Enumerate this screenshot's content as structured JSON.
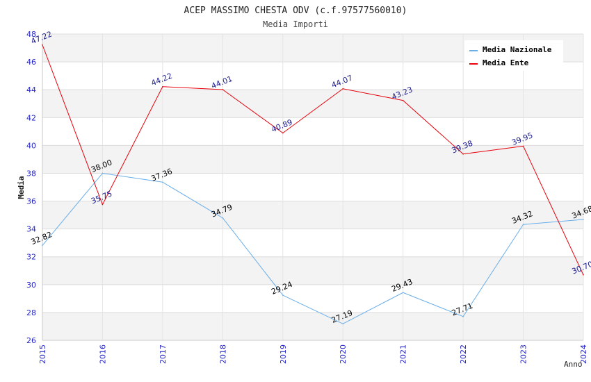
{
  "chart_data": {
    "type": "line",
    "title": "ACEP MASSIMO CHESTA ODV (c.f.97577560010)",
    "subtitle": "Media Importi",
    "xlabel": "Anno",
    "ylabel": "Media",
    "x": [
      "2015",
      "2016",
      "2017",
      "2018",
      "2019",
      "2020",
      "2021",
      "2022",
      "2023",
      "2024"
    ],
    "ylim": [
      26,
      48
    ],
    "yticks": [
      "26",
      "28",
      "30",
      "32",
      "34",
      "36",
      "38",
      "40",
      "42",
      "44",
      "46",
      "48"
    ],
    "grid": true,
    "legend_position": "top-right",
    "series": [
      {
        "name": "Media Nazionale",
        "color": "#6aaee8",
        "label_color": "#000000",
        "values": [
          32.82,
          38.0,
          37.36,
          34.79,
          29.24,
          27.19,
          29.43,
          27.71,
          34.32,
          34.68
        ],
        "labels": [
          "32.82",
          "38.00",
          "37.36",
          "34.79",
          "29.24",
          "27.19",
          "29.43",
          "27.71",
          "34.32",
          "34.68"
        ]
      },
      {
        "name": "Media Ente",
        "color": "#e8000b",
        "label_color": "#1a1a8c",
        "values": [
          47.22,
          35.75,
          44.22,
          44.01,
          40.89,
          44.07,
          43.23,
          39.38,
          39.95,
          30.7
        ],
        "labels": [
          "47.22",
          "35.75",
          "44.22",
          "44.01",
          "40.89",
          "44.07",
          "43.23",
          "39.38",
          "39.95",
          "30.70"
        ]
      }
    ]
  }
}
